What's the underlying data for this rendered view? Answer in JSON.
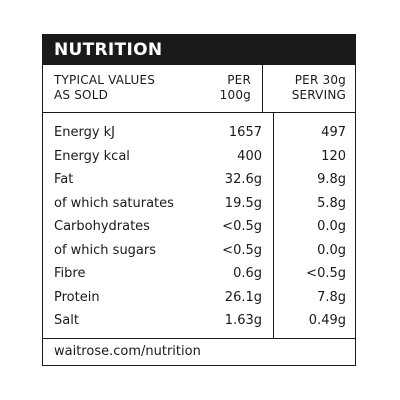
{
  "label": {
    "title": "NUTRITION",
    "header": {
      "name_line1": "TYPICAL VALUES",
      "name_line2": "AS SOLD",
      "per100_line1": "PER",
      "per100_line2": "100g",
      "per30_line1": "PER 30g",
      "per30_line2": "SERVING"
    },
    "rows": [
      {
        "name": "Energy kJ",
        "per100": "1657",
        "per30": "497"
      },
      {
        "name": "Energy kcal",
        "per100": "400",
        "per30": "120"
      },
      {
        "name": "Fat",
        "per100": "32.6g",
        "per30": "9.8g"
      },
      {
        "name": "of which saturates",
        "per100": "19.5g",
        "per30": "5.8g"
      },
      {
        "name": "Carbohydrates",
        "per100": "<0.5g",
        "per30": "0.0g"
      },
      {
        "name": "of which sugars",
        "per100": "<0.5g",
        "per30": "0.0g"
      },
      {
        "name": "Fibre",
        "per100": "0.6g",
        "per30": "<0.5g"
      },
      {
        "name": "Protein",
        "per100": "26.1g",
        "per30": "7.8g"
      },
      {
        "name": "Salt",
        "per100": "1.63g",
        "per30": "0.49g"
      }
    ],
    "footer": "waitrose.com/nutrition"
  }
}
